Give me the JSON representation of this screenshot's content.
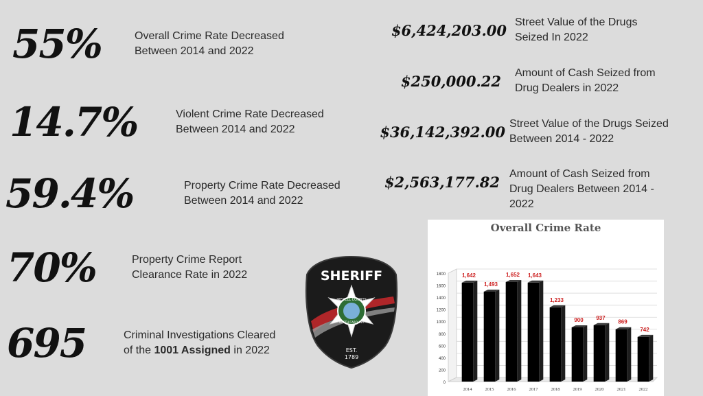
{
  "left_stats": [
    {
      "value": "55%",
      "label_line1": "Overall Crime Rate Decreased",
      "label_line2": "Between 2014 and 2022"
    },
    {
      "value": "14.7%",
      "label_line1": "Violent Crime Rate Decreased",
      "label_line2": "Between 2014 and 2022"
    },
    {
      "value": "59.4%",
      "label_line1": "Property Crime Rate Decreased",
      "label_line2": "Between 2014 and 2022"
    },
    {
      "value": "70%",
      "label_line1": "Property Crime Report",
      "label_line2": "Clearance Rate in 2022"
    },
    {
      "value": "695",
      "label_line1": "Criminal Investigations Cleared",
      "label_line2_pre": "of the ",
      "label_line2_bold": "1001 Assigned",
      "label_line2_post": " in 2022"
    }
  ],
  "right_stats": [
    {
      "value": "$6,424,203.00",
      "label_line1": "Street Value of the Drugs",
      "label_line2": "Seized In 2022"
    },
    {
      "value": "$250,000.22",
      "label_line1": "Amount of Cash Seized from",
      "label_line2": "Drug Dealers in 2022"
    },
    {
      "value": "$36,142,392.00",
      "label_line1": "Street Value of the Drugs Seized",
      "label_line2": "Between 2014 - 2022"
    },
    {
      "value": "$2,563,177.82",
      "label_line1": "Amount of Cash Seized from",
      "label_line2": "Drug Dealers Between 2014 -",
      "label_line3": "2022"
    }
  ],
  "badge": {
    "text_top": "SHERIFF",
    "ring_text": "IREDELL COUNTY",
    "ring_text_bottom": "NORTH CAROLINA",
    "est_label": "EST.",
    "est_year": "1789"
  },
  "colors": {
    "background": "#dcdcdc",
    "bar": "#000000",
    "data_label": "#cc1f1f",
    "badge_black": "#1b1b1b",
    "badge_red": "#c0282b"
  },
  "chart_data": {
    "type": "bar",
    "title": "Overall Crime Rate",
    "categories": [
      "2014",
      "2015",
      "2016",
      "2017",
      "2018",
      "2019",
      "2020",
      "2021",
      "2022"
    ],
    "values": [
      1642,
      1493,
      1652,
      1643,
      1233,
      900,
      937,
      869,
      742
    ],
    "value_labels": [
      "1,642",
      "1,493",
      "1,652",
      "1,643",
      "1,233",
      "900",
      "937",
      "869",
      "742"
    ],
    "yticks": [
      "0",
      "200",
      "400",
      "600",
      "800",
      "1000",
      "1200",
      "1400",
      "1600",
      "1800"
    ],
    "ylim": [
      0,
      1800
    ],
    "grid": true,
    "style": "3d-bar"
  }
}
